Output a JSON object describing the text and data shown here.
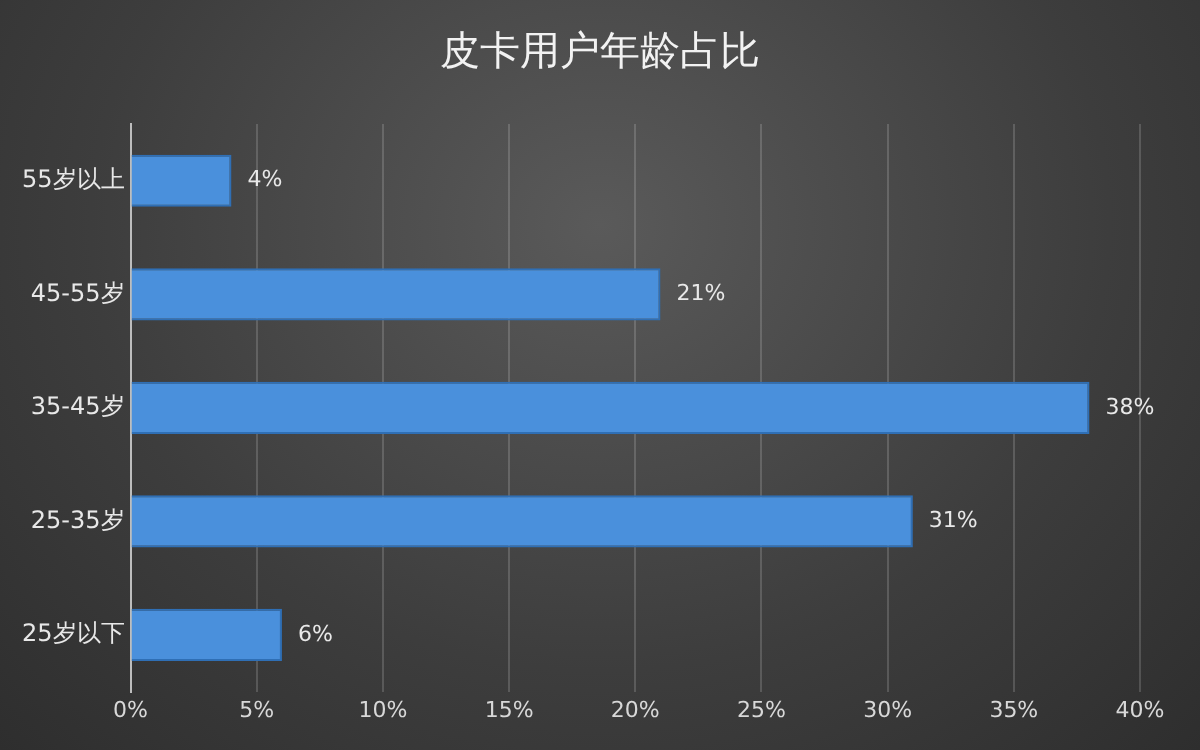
{
  "chart_data": {
    "type": "bar",
    "orientation": "horizontal",
    "title": "皮卡用户年龄占比",
    "categories": [
      "55岁以上",
      "45-55岁",
      "35-45岁",
      "25-35岁",
      "25岁以下"
    ],
    "values": [
      4,
      21,
      38,
      31,
      6
    ],
    "color": "#4a90dc",
    "value_labels": [
      "4%",
      "21%",
      "38%",
      "31%",
      "6%"
    ],
    "xlim": [
      0,
      40
    ],
    "xticks": [
      {
        "value": 0,
        "label": "0%"
      },
      {
        "value": 5,
        "label": "5%"
      },
      {
        "value": 10,
        "label": "10%"
      },
      {
        "value": 15,
        "label": "15%"
      },
      {
        "value": 20,
        "label": "20%"
      },
      {
        "value": 25,
        "label": "25%"
      },
      {
        "value": 30,
        "label": "30%"
      },
      {
        "value": 35,
        "label": "35%"
      },
      {
        "value": 40,
        "label": "40%"
      }
    ],
    "grid": "x",
    "legend": false
  }
}
